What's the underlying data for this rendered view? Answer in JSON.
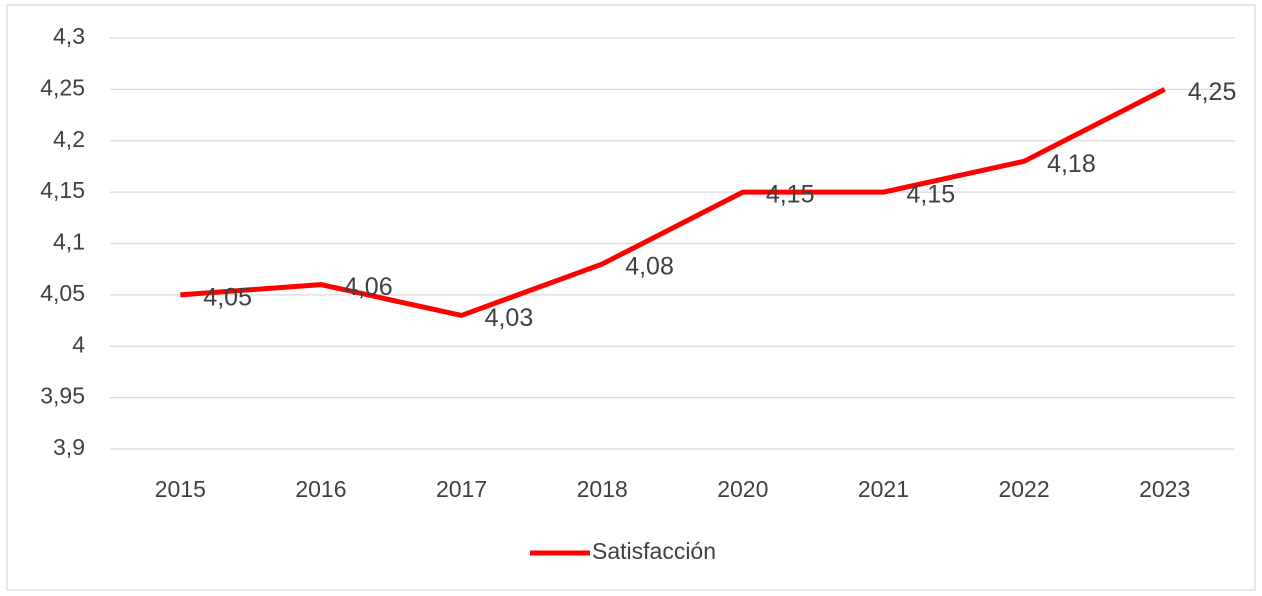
{
  "chart_data": {
    "type": "line",
    "categories": [
      "2015",
      "2016",
      "2017",
      "2018",
      "2020",
      "2021",
      "2022",
      "2023"
    ],
    "series": [
      {
        "name": "Satisfacción",
        "color": "#ff0000",
        "values": [
          4.05,
          4.06,
          4.03,
          4.08,
          4.15,
          4.15,
          4.18,
          4.25
        ],
        "value_labels": [
          "4,05",
          "4,06",
          "4,03",
          "4,08",
          "4,15",
          "4,15",
          "4,18",
          "4,25"
        ]
      }
    ],
    "ylim": [
      3.9,
      4.3
    ],
    "yticks": [
      {
        "value": 3.9,
        "label": "3,9"
      },
      {
        "value": 3.95,
        "label": "3,95"
      },
      {
        "value": 4,
        "label": "4"
      },
      {
        "value": 4.05,
        "label": "4,05"
      },
      {
        "value": 4.1,
        "label": "4,1"
      },
      {
        "value": 4.15,
        "label": "4,15"
      },
      {
        "value": 4.2,
        "label": "4,2"
      },
      {
        "value": 4.25,
        "label": "4,25"
      },
      {
        "value": 4.3,
        "label": "4,3"
      }
    ],
    "grid": true,
    "legend": "bottom"
  }
}
